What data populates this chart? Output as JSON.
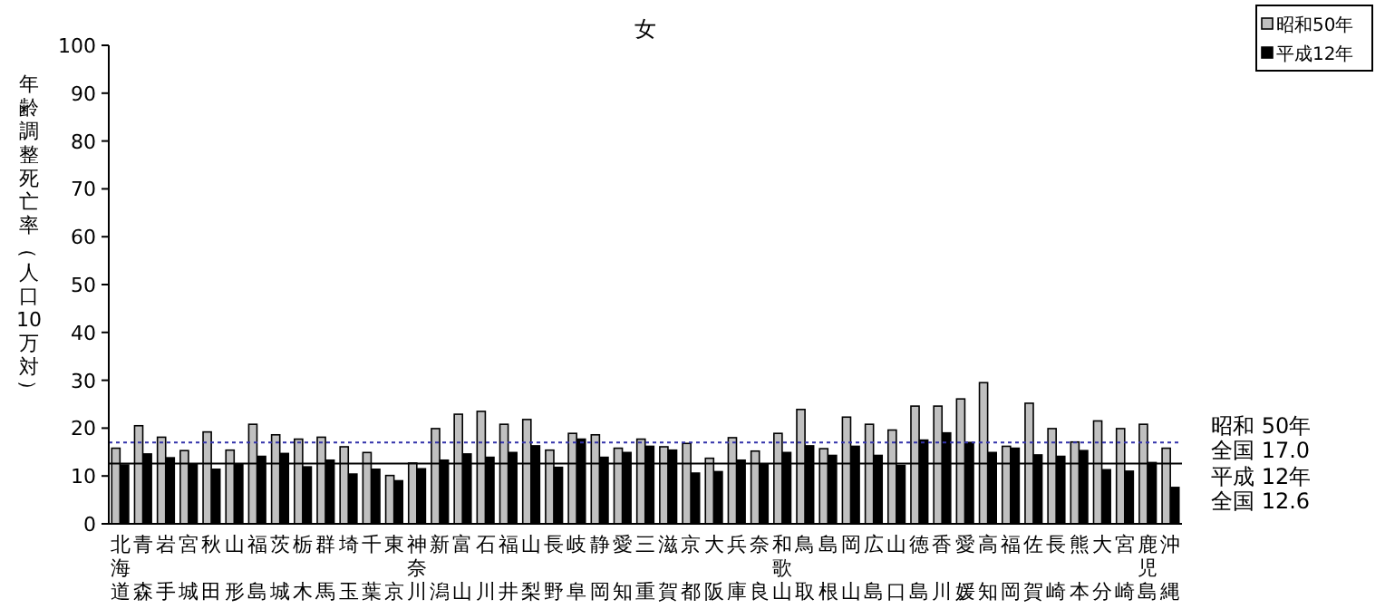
{
  "chart_data": {
    "type": "bar",
    "title": "女",
    "ylabel": "年齢調整死亡率（人口10万対）",
    "categories": [
      "北海道",
      "青森",
      "岩手",
      "宮城",
      "秋田",
      "山形",
      "福島",
      "茨城",
      "栃木",
      "群馬",
      "埼玉",
      "千葉",
      "東京",
      "神奈川",
      "新潟",
      "富山",
      "石川",
      "福井",
      "山梨",
      "長野",
      "岐阜",
      "静岡",
      "愛知",
      "三重",
      "滋賀",
      "京都",
      "大阪",
      "兵庫",
      "奈良",
      "和歌山",
      "鳥取",
      "島根",
      "岡山",
      "広島",
      "山口",
      "徳島",
      "香川",
      "愛媛",
      "高知",
      "福岡",
      "佐賀",
      "長崎",
      "熊本",
      "大分",
      "宮崎",
      "鹿児島",
      "沖縄"
    ],
    "series": [
      {
        "name": "昭和50年",
        "color": "#c0c0c0",
        "values": [
          15.8,
          20.5,
          18.1,
          15.3,
          19.2,
          15.4,
          20.8,
          18.6,
          17.7,
          18.1,
          16.1,
          14.9,
          10.1,
          12.7,
          19.9,
          22.9,
          23.5,
          20.8,
          21.8,
          15.4,
          18.9,
          18.6,
          15.8,
          17.7,
          16.1,
          16.8,
          13.7,
          18.0,
          15.2,
          18.9,
          23.9,
          15.7,
          22.3,
          20.8,
          19.6,
          24.6,
          24.6,
          26.1,
          29.5,
          16.2,
          25.2,
          19.9,
          17.1,
          21.5,
          19.9,
          20.8,
          15.8
        ]
      },
      {
        "name": "平成12年",
        "color": "#000000",
        "values": [
          12.3,
          14.6,
          13.8,
          12.5,
          11.4,
          12.5,
          14.1,
          14.7,
          11.9,
          13.3,
          10.4,
          11.4,
          9.0,
          11.5,
          13.3,
          14.6,
          13.9,
          14.9,
          16.3,
          11.8,
          17.7,
          13.9,
          14.9,
          16.2,
          15.4,
          10.6,
          10.9,
          13.3,
          12.5,
          14.9,
          16.3,
          14.3,
          16.2,
          14.3,
          12.2,
          17.5,
          19.0,
          17.0,
          14.9,
          15.8,
          14.4,
          14.1,
          15.3,
          11.3,
          11.0,
          12.8,
          7.6
        ]
      }
    ],
    "ylim": [
      0,
      100
    ],
    "yticks": [
      0,
      10,
      20,
      30,
      40,
      50,
      60,
      70,
      80,
      90,
      100
    ],
    "ref_lines": [
      {
        "axis": "y",
        "value": 17.0,
        "label": [
          "昭和 50年",
          "全国 17.0"
        ],
        "color": "#3333aa",
        "line_style": "dotted"
      },
      {
        "axis": "y",
        "value": 12.6,
        "label": [
          "平成 12年",
          "全国 12.6"
        ],
        "color": "#000000",
        "line_style": "solid"
      }
    ],
    "legend": "top right",
    "grid": false
  }
}
